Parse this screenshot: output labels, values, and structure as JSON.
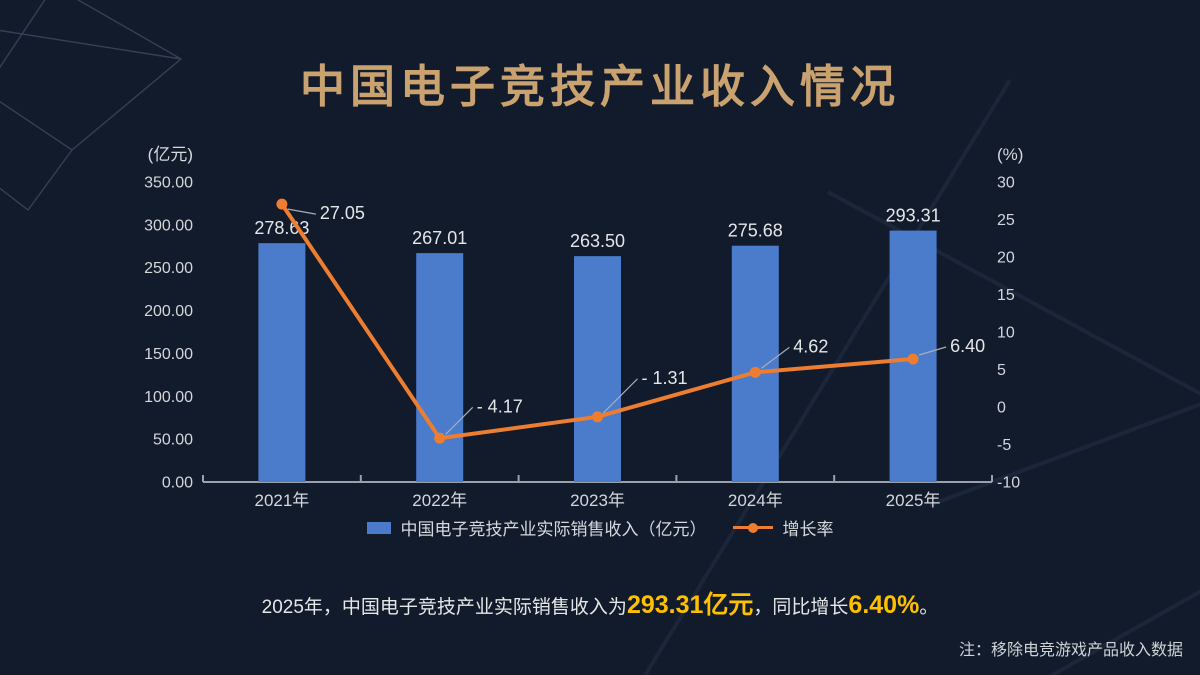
{
  "title": "中国电子竞技产业收入情况",
  "legend": {
    "bars": "中国电子竞技产业实际销售收入（亿元）",
    "line": "增长率"
  },
  "summary": {
    "prefix": "2025年，中国电子竞技产业实际销售收入为",
    "highlight_revenue": "293.31亿元",
    "middle": "，同比增长",
    "highlight_growth": "6.40%",
    "suffix": "。"
  },
  "note": "注：移除电竞游戏产品收入数据",
  "colors": {
    "background": "#121B2B",
    "bar": "#4B7CCB",
    "line": "#ED7D31",
    "highlight": "#FFC000",
    "title_gold": "#C9A270",
    "axis": "#9AA1AB",
    "text_light": "#D6D8DC"
  },
  "chart_data": {
    "type": "bar",
    "subtype": "bar+line combo",
    "categories": [
      "2021年",
      "2022年",
      "2023年",
      "2024年",
      "2025年"
    ],
    "series": [
      {
        "name": "中国电子竞技产业实际销售收入（亿元）",
        "type": "bar",
        "axis": "left",
        "values": [
          278.63,
          267.01,
          263.5,
          275.68,
          293.31
        ],
        "labels": [
          "278.63",
          "267.01",
          "263.50",
          "275.68",
          "293.31"
        ]
      },
      {
        "name": "增长率",
        "type": "line",
        "axis": "right",
        "values": [
          27.05,
          -4.17,
          -1.31,
          4.62,
          6.4
        ],
        "labels": [
          "27.05",
          "- 4.17",
          "- 1.31",
          "4.62",
          "6.40"
        ]
      }
    ],
    "left_axis": {
      "unit": "(亿元)",
      "min": 0,
      "max": 350,
      "step": 50
    },
    "right_axis": {
      "unit": "(%)",
      "min": -10,
      "max": 30,
      "step": 5
    },
    "grid": false,
    "legend_position": "bottom",
    "title": "中国电子竞技产业收入情况"
  }
}
